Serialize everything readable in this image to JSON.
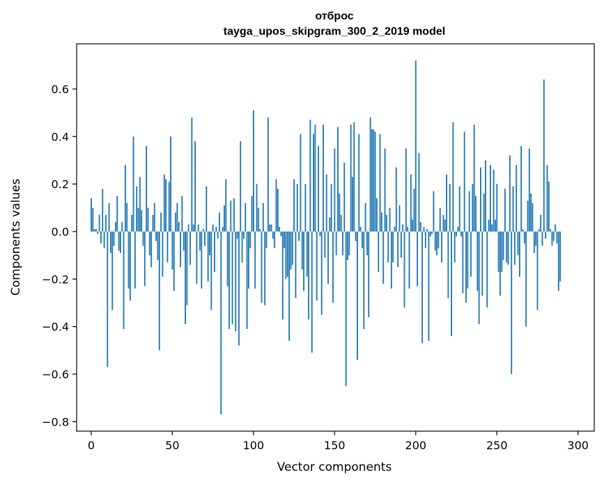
{
  "chart_data": {
    "type": "bar",
    "title": "отброс",
    "subtitle": "tayga_upos_skipgram_300_2_2019 model",
    "xlabel": "Vector components",
    "ylabel": "Components values",
    "xlim": [
      -9,
      310
    ],
    "ylim": [
      -0.84,
      0.79
    ],
    "xticks": [
      0,
      50,
      100,
      150,
      200,
      250,
      300
    ],
    "yticks": [
      -0.8,
      -0.6,
      -0.4,
      -0.2,
      0.0,
      0.2,
      0.4,
      0.6
    ],
    "ytick_labels": [
      "−0.8",
      "−0.6",
      "−0.4",
      "−0.2",
      "0.0",
      "0.2",
      "0.4",
      "0.6"
    ],
    "bar_color": "#1f77b4",
    "values": [
      0.14,
      0.1,
      0.01,
      0.01,
      -0.01,
      0.07,
      -0.05,
      0.18,
      -0.07,
      0.07,
      -0.57,
      0.12,
      -0.09,
      -0.33,
      -0.06,
      0.04,
      0.15,
      -0.08,
      -0.09,
      0.04,
      -0.41,
      0.28,
      0.12,
      -0.24,
      -0.29,
      0.07,
      0.4,
      -0.24,
      0.19,
      0.1,
      0.23,
      0.09,
      -0.06,
      -0.23,
      0.36,
      0.1,
      -0.1,
      -0.15,
      0.07,
      0.12,
      -0.04,
      -0.12,
      -0.5,
      0.08,
      -0.19,
      0.24,
      0.22,
      -0.13,
      0.21,
      0.4,
      -0.16,
      -0.25,
      0.08,
      0.12,
      0.04,
      -0.15,
      0.15,
      -0.08,
      -0.39,
      -0.31,
      0.03,
      -0.14,
      0.48,
      0.03,
      0.38,
      -0.22,
      0.03,
      -0.08,
      -0.24,
      0.01,
      -0.06,
      0.19,
      -0.21,
      -0.1,
      -0.33,
      0.03,
      -0.17,
      0.02,
      -0.03,
      0.08,
      -0.77,
      0.02,
      0.11,
      0.22,
      -0.23,
      -0.41,
      0.13,
      -0.39,
      0.14,
      -0.42,
      -0.03,
      -0.48,
      0.38,
      -0.13,
      -0.03,
      0.12,
      -0.41,
      -0.24,
      -0.07,
      0.15,
      0.51,
      -0.24,
      0.2,
      0.1,
      0.01,
      -0.3,
      0.12,
      -0.31,
      -0.07,
      0.48,
      0.03,
      0.03,
      -0.03,
      -0.07,
      0.22,
      0.18,
      0.02,
      -0.02,
      -0.37,
      -0.07,
      -0.2,
      -0.19,
      -0.46,
      -0.16,
      -0.14,
      0.22,
      -0.28,
      0.2,
      -0.04,
      0.41,
      -0.16,
      -0.25,
      0.2,
      -0.19,
      -0.37,
      0.47,
      -0.51,
      0.41,
      0.45,
      -0.29,
      0.36,
      -0.02,
      -0.35,
      0.45,
      -0.11,
      0.24,
      -0.22,
      0.06,
      0.2,
      -0.3,
      0.35,
      -0.1,
      0.44,
      0.16,
      0.07,
      -0.1,
      0.29,
      -0.65,
      -0.12,
      -0.1,
      0.45,
      0.23,
      0.46,
      -0.04,
      -0.54,
      0.41,
      0.02,
      -0.07,
      -0.41,
      0.12,
      -0.1,
      -0.36,
      0.48,
      0.43,
      0.43,
      0.42,
      0.14,
      -0.17,
      0.41,
      0.08,
      -0.22,
      0.35,
      0.07,
      -0.13,
      0.1,
      -0.24,
      -0.13,
      0.02,
      0.27,
      -0.15,
      0.11,
      -0.11,
      0.03,
      -0.32,
      0.35,
      0.02,
      -0.24,
      0.24,
      0.05,
      0.18,
      0.72,
      -0.23,
      0.33,
      0.04,
      -0.47,
      0.02,
      -0.07,
      0.01,
      -0.46,
      -0.02,
      -0.01,
      0.17,
      -0.08,
      -0.1,
      -0.07,
      0.1,
      -0.13,
      0.07,
      0.05,
      0.24,
      -0.28,
      0.2,
      -0.44,
      0.46,
      -0.13,
      -0.02,
      0.02,
      0.19,
      -0.02,
      -0.26,
      0.42,
      -0.3,
      -0.24,
      0.17,
      -0.19,
      0.2,
      0.45,
      0.15,
      -0.25,
      -0.39,
      0.27,
      -0.27,
      0.16,
      0.3,
      -0.32,
      0.05,
      0.28,
      0.03,
      0.26,
      0.05,
      0.2,
      -0.17,
      -0.27,
      -0.17,
      -0.12,
      0.18,
      -0.13,
      -0.14,
      0.32,
      -0.6,
      0.19,
      -0.14,
      0.28,
      -0.1,
      -0.19,
      0.36,
      0.01,
      -0.05,
      -0.4,
      0.13,
      0.35,
      0.16,
      0.12,
      -0.09,
      -0.06,
      -0.33,
      0.01,
      0.07,
      -0.06,
      0.64,
      -0.03,
      0.28,
      0.21,
      0.01,
      -0.06,
      -0.04,
      0.03,
      -0.05,
      -0.25,
      -0.21
    ]
  }
}
